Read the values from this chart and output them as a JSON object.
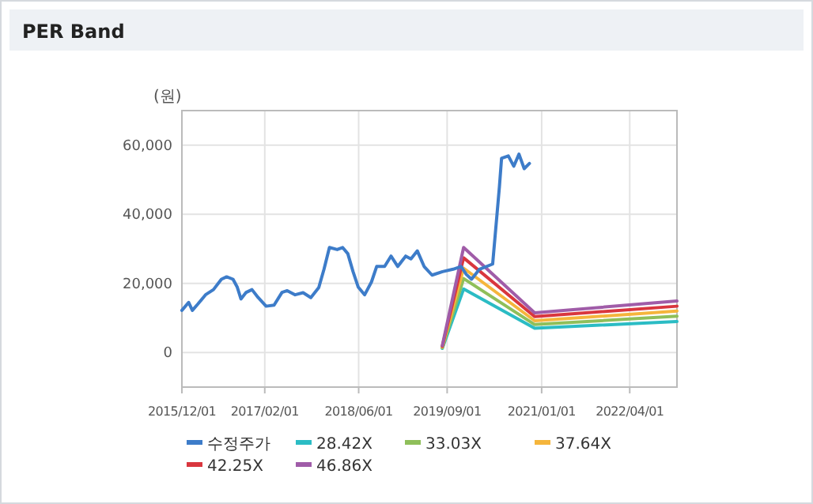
{
  "chart_data": {
    "type": "line",
    "title": "PER Band",
    "ylabel": "(원)",
    "xlim": [
      "2015-12-01",
      "2022-12-01"
    ],
    "xticks": [
      {
        "value": "2015-12-01",
        "label": "2015/12/01"
      },
      {
        "value": "2017-02-01",
        "label": "2017/02/01"
      },
      {
        "value": "2018-06-01",
        "label": "2018/06/01"
      },
      {
        "value": "2019-09-01",
        "label": "2019/09/01"
      },
      {
        "value": "2021-01-01",
        "label": "2021/01/01"
      },
      {
        "value": "2022-04-01",
        "label": "2022/04/01"
      }
    ],
    "ylim": [
      -10000,
      70000
    ],
    "yticks": [
      0,
      {
        "value": 20000,
        "label": "20,000"
      },
      {
        "value": 40000,
        "label": "40,000"
      },
      {
        "value": 60000,
        "label": "60,000"
      }
    ],
    "grid": true,
    "legend": "bottom",
    "line_style": "solid",
    "series": [
      {
        "name": "수정주가",
        "color": "#3d7cc9",
        "x": [
          "2015-12-01",
          "2016-01-05",
          "2016-01-24",
          "2016-02-21",
          "2016-04-01",
          "2016-05-12",
          "2016-06-22",
          "2016-07-19",
          "2016-08-21",
          "2016-09-12",
          "2016-10-01",
          "2016-10-28",
          "2016-11-27",
          "2016-12-29",
          "2017-02-08",
          "2017-03-21",
          "2017-05-01",
          "2017-05-28",
          "2017-07-08",
          "2017-08-18",
          "2017-09-27",
          "2017-11-07",
          "2017-12-04",
          "2018-01-01",
          "2018-02-10",
          "2018-03-10",
          "2018-04-06",
          "2018-05-03",
          "2018-05-30",
          "2018-07-02",
          "2018-08-06",
          "2018-09-02",
          "2018-10-13",
          "2018-11-15",
          "2018-12-20",
          "2019-01-30",
          "2019-02-26",
          "2019-03-31",
          "2019-05-05",
          "2019-06-15",
          "2019-08-08",
          "2019-10-02",
          "2019-11-12",
          "2019-12-09",
          "2020-01-05",
          "2020-02-15",
          "2020-04-23",
          "2020-05-28",
          "2020-06-08",
          "2020-07-13",
          "2020-08-10",
          "2020-09-06",
          "2020-10-03",
          "2020-10-30"
        ],
        "values": [
          12200,
          14500,
          12200,
          14000,
          16700,
          18200,
          21200,
          21900,
          21200,
          18900,
          15500,
          17400,
          18200,
          15900,
          13400,
          13700,
          17400,
          17900,
          16700,
          17300,
          15900,
          18800,
          24100,
          30400,
          29800,
          30400,
          28600,
          23400,
          18900,
          16700,
          20400,
          24900,
          24900,
          27900,
          24900,
          27900,
          27100,
          29400,
          24900,
          22400,
          23400,
          24100,
          24900,
          22600,
          21200,
          24100,
          25600,
          48000,
          56200,
          56900,
          53900,
          57400,
          53200,
          54700
        ]
      },
      {
        "name": "28.42X",
        "color": "#2bbcc4",
        "x": [
          "2019-08-07",
          "2019-11-25",
          "2020-11-26",
          "2022-12-01"
        ],
        "values": [
          1200,
          18400,
          7000,
          9000
        ]
      },
      {
        "name": "33.03X",
        "color": "#8fbf5a",
        "x": [
          "2019-08-07",
          "2019-11-25",
          "2020-11-26",
          "2022-12-01"
        ],
        "values": [
          1400,
          21400,
          8100,
          10500
        ]
      },
      {
        "name": "37.64X",
        "color": "#f5b53c",
        "x": [
          "2019-08-07",
          "2019-11-25",
          "2020-11-26",
          "2022-12-01"
        ],
        "values": [
          1600,
          24400,
          9200,
          12000
        ]
      },
      {
        "name": "42.25X",
        "color": "#d9363e",
        "x": [
          "2019-08-07",
          "2019-11-25",
          "2020-11-26",
          "2022-12-01"
        ],
        "values": [
          1800,
          27400,
          10400,
          13400
        ]
      },
      {
        "name": "46.86X",
        "color": "#a05ca8",
        "x": [
          "2019-08-07",
          "2019-11-25",
          "2020-11-26",
          "2022-12-01"
        ],
        "values": [
          2000,
          30400,
          11500,
          14900
        ]
      }
    ]
  }
}
